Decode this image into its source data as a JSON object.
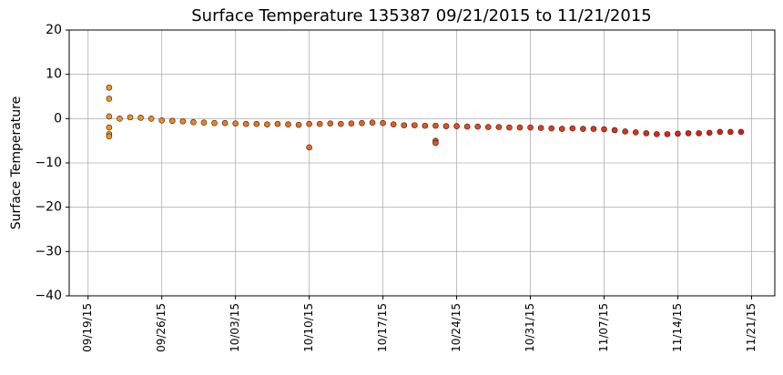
{
  "chart_data": {
    "type": "scatter",
    "title": "Surface Temperature 135387  09/21/2015 to 11/21/2015",
    "y_label": "Surface Temperature",
    "x": [
      "2015-09-21",
      "2015-09-21",
      "2015-09-21",
      "2015-09-21",
      "2015-09-21",
      "2015-09-21",
      "2015-09-22",
      "2015-09-23",
      "2015-09-24",
      "2015-09-25",
      "2015-09-26",
      "2015-09-27",
      "2015-09-28",
      "2015-09-29",
      "2015-09-30",
      "2015-10-01",
      "2015-10-02",
      "2015-10-03",
      "2015-10-04",
      "2015-10-05",
      "2015-10-06",
      "2015-10-07",
      "2015-10-08",
      "2015-10-09",
      "2015-10-10",
      "2015-10-10",
      "2015-10-11",
      "2015-10-12",
      "2015-10-13",
      "2015-10-14",
      "2015-10-15",
      "2015-10-16",
      "2015-10-17",
      "2015-10-18",
      "2015-10-19",
      "2015-10-20",
      "2015-10-21",
      "2015-10-22",
      "2015-10-22",
      "2015-10-22",
      "2015-10-23",
      "2015-10-24",
      "2015-10-25",
      "2015-10-26",
      "2015-10-27",
      "2015-10-28",
      "2015-10-29",
      "2015-10-30",
      "2015-10-31",
      "2015-11-01",
      "2015-11-02",
      "2015-11-03",
      "2015-11-04",
      "2015-11-05",
      "2015-11-06",
      "2015-11-07",
      "2015-11-08",
      "2015-11-09",
      "2015-11-10",
      "2015-11-11",
      "2015-11-12",
      "2015-11-13",
      "2015-11-14",
      "2015-11-15",
      "2015-11-16",
      "2015-11-17",
      "2015-11-18",
      "2015-11-19",
      "2015-11-20"
    ],
    "values": [
      7,
      4.5,
      0.5,
      -2,
      -3.5,
      -4,
      0,
      0.3,
      0.2,
      0,
      -0.4,
      -0.5,
      -0.6,
      -0.8,
      -0.9,
      -1,
      -1,
      -1.1,
      -1.2,
      -1.2,
      -1.3,
      -1.2,
      -1.3,
      -1.4,
      -1.2,
      -6.5,
      -1.2,
      -1.1,
      -1.2,
      -1.1,
      -1,
      -0.9,
      -1,
      -1.3,
      -1.5,
      -1.5,
      -1.6,
      -1.6,
      -5,
      -5.5,
      -1.7,
      -1.7,
      -1.8,
      -1.8,
      -1.9,
      -1.9,
      -2,
      -2,
      -2,
      -2.1,
      -2.2,
      -2.3,
      -2.2,
      -2.3,
      -2.3,
      -2.4,
      -2.6,
      -2.9,
      -3.1,
      -3.3,
      -3.5,
      -3.5,
      -3.4,
      -3.3,
      -3.3,
      -3.2,
      -3,
      -3,
      -3
    ],
    "color_start": "#f7931e",
    "color_end": "#e8120a",
    "edge_color": "#222222",
    "xlim": [
      "2015-09-17T05:00",
      "2015-11-23T05:00"
    ],
    "xticks": [
      {
        "value": "2015-09-19",
        "label": "09/19/15"
      },
      {
        "value": "2015-09-26",
        "label": "09/26/15"
      },
      {
        "value": "2015-10-03",
        "label": "10/03/15"
      },
      {
        "value": "2015-10-10",
        "label": "10/10/15"
      },
      {
        "value": "2015-10-17",
        "label": "10/17/15"
      },
      {
        "value": "2015-10-24",
        "label": "10/24/15"
      },
      {
        "value": "2015-10-31",
        "label": "10/31/15"
      },
      {
        "value": "2015-11-07",
        "label": "11/07/15"
      },
      {
        "value": "2015-11-14",
        "label": "11/14/15"
      },
      {
        "value": "2015-11-21",
        "label": "11/21/15"
      }
    ],
    "ylim": [
      -40,
      20
    ],
    "yticks": [
      {
        "value": -40,
        "label": "−40"
      },
      {
        "value": -30,
        "label": "−30"
      },
      {
        "value": -20,
        "label": "−20"
      },
      {
        "value": -10,
        "label": "−10"
      },
      0,
      10,
      20
    ],
    "grid": true
  }
}
